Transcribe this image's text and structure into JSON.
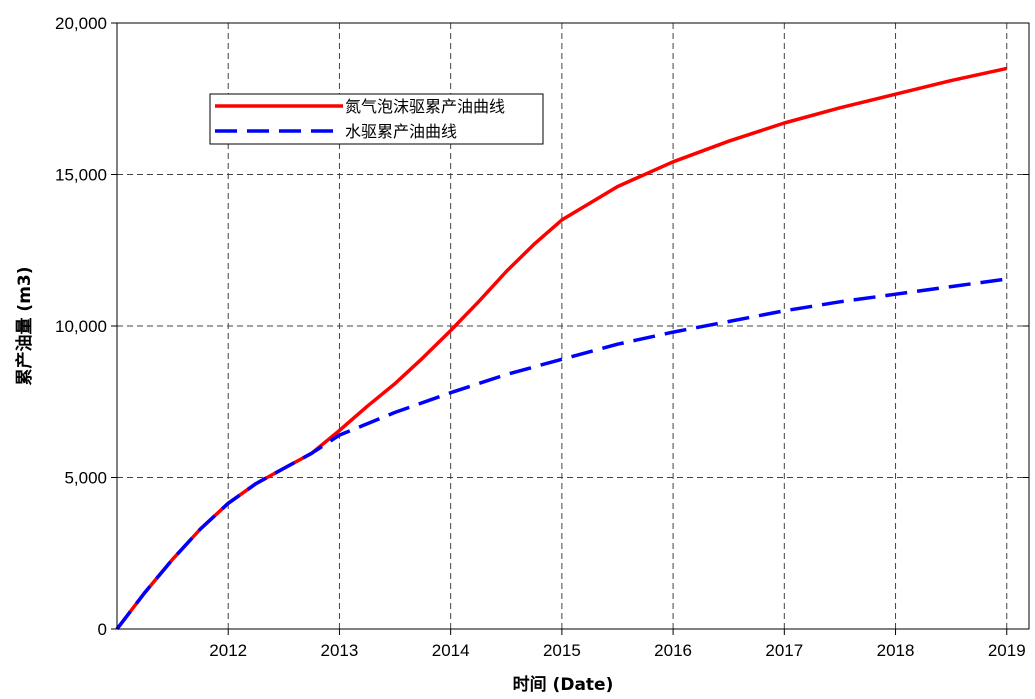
{
  "chart_data": {
    "type": "line",
    "title": "",
    "xlabel": "时间 (Date)",
    "ylabel": "累产油量 (m3)",
    "xlim": [
      2011.0,
      2019.2
    ],
    "ylim": [
      0,
      20000
    ],
    "x_ticks": [
      2012,
      2013,
      2014,
      2015,
      2016,
      2017,
      2018,
      2019
    ],
    "y_ticks": [
      0,
      5000,
      10000,
      15000,
      20000
    ],
    "y_tick_labels": [
      "0",
      "5,000",
      "10,000",
      "15,000",
      "20,000"
    ],
    "grid": true,
    "legend_position": "top-left",
    "series": [
      {
        "name": "氮气泡沫驱累产油曲线",
        "color": "#ff0000",
        "line_style": "solid",
        "x": [
          2011.0,
          2011.25,
          2011.5,
          2011.75,
          2012.0,
          2012.25,
          2012.5,
          2012.75,
          2013.0,
          2013.25,
          2013.5,
          2013.75,
          2014.0,
          2014.25,
          2014.5,
          2014.75,
          2015.0,
          2015.5,
          2016.0,
          2016.5,
          2017.0,
          2017.5,
          2018.0,
          2018.5,
          2019.0
        ],
        "y": [
          0,
          1200,
          2300,
          3300,
          4150,
          4800,
          5300,
          5800,
          6550,
          7350,
          8100,
          8950,
          9850,
          10800,
          11800,
          12700,
          13500,
          14600,
          15420,
          16100,
          16700,
          17200,
          17650,
          18100,
          18500
        ]
      },
      {
        "name": "水驱累产油曲线",
        "color": "#0000ff",
        "line_style": "dashed",
        "x": [
          2011.0,
          2011.25,
          2011.5,
          2011.75,
          2012.0,
          2012.25,
          2012.5,
          2012.75,
          2013.0,
          2013.5,
          2014.0,
          2014.5,
          2015.0,
          2015.5,
          2016.0,
          2016.5,
          2017.0,
          2017.5,
          2018.0,
          2018.5,
          2019.0
        ],
        "y": [
          0,
          1200,
          2300,
          3300,
          4150,
          4800,
          5300,
          5800,
          6400,
          7150,
          7800,
          8400,
          8900,
          9400,
          9800,
          10150,
          10500,
          10800,
          11050,
          11300,
          11550
        ]
      }
    ]
  }
}
